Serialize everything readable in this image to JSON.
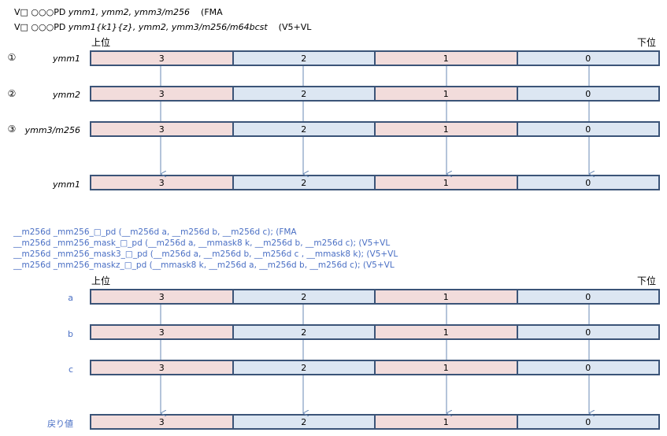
{
  "header": {
    "line1_prefix": "V□ ○○○PD ",
    "line1_operands": "ymm1, ymm2, ymm3/m256",
    "line1_suffix": "(FMA",
    "line2_prefix": "V□ ○○○PD ",
    "line2_operands": "ymm1{k1}{z}, ymm2, ymm3/m256/m64bcst",
    "line2_suffix": "(V5+VL"
  },
  "top": {
    "upper": "上位",
    "lower": "下位",
    "rows": [
      {
        "num": "①",
        "label": "ymm1"
      },
      {
        "num": "②",
        "label": "ymm2"
      },
      {
        "num": "③",
        "label": "ymm3/m256"
      },
      {
        "num": "",
        "label": "ymm1"
      }
    ]
  },
  "intrinsics": [
    "__m256d _mm256_□_pd (__m256d a, __m256d b, __m256d c);   (FMA",
    "__m256d _mm256_mask_□_pd (__m256d a, __mmask8 k, __m256d b, __m256d c);   (V5+VL",
    "__m256d _mm256_mask3_□_pd (__m256d a, __m256d b, __m256d c , __mmask8 k);   (V5+VL",
    "__m256d _mm256_maskz_□_pd (__mmask8 k, __m256d a, __m256d b, __m256d c);   (V5+VL"
  ],
  "bottom": {
    "upper": "上位",
    "lower": "下位",
    "rows": [
      {
        "label": "a"
      },
      {
        "label": "b"
      },
      {
        "label": "c"
      },
      {
        "label": "戻り値"
      }
    ]
  },
  "cells": [
    "3",
    "2",
    "1",
    "0"
  ],
  "colors": {
    "pink": "#f2dcdb",
    "lightblue": "#dce6f2",
    "border": "#3b5478",
    "arrow": "#6a8ab5",
    "text_blue": "#4a6fc4"
  }
}
